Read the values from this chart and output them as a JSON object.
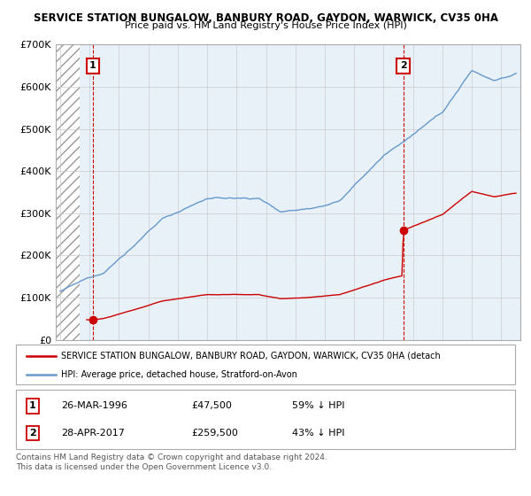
{
  "title1": "SERVICE STATION BUNGALOW, BANBURY ROAD, GAYDON, WARWICK, CV35 0HA",
  "title2": "Price paid vs. HM Land Registry's House Price Index (HPI)",
  "ylim": [
    0,
    700000
  ],
  "yticks": [
    0,
    100000,
    200000,
    300000,
    400000,
    500000,
    600000,
    700000
  ],
  "ytick_labels": [
    "£0",
    "£100K",
    "£200K",
    "£300K",
    "£400K",
    "£500K",
    "£600K",
    "£700K"
  ],
  "xlim_start": 1993.7,
  "xlim_end": 2025.3,
  "hatch_end": 1995.3,
  "sale1_x": 1996.23,
  "sale1_y": 47500,
  "sale2_x": 2017.33,
  "sale2_y": 259500,
  "legend1": "SERVICE STATION BUNGALOW, BANBURY ROAD, GAYDON, WARWICK, CV35 0HA (detach",
  "legend2": "HPI: Average price, detached house, Stratford-on-Avon",
  "footer": "Contains HM Land Registry data © Crown copyright and database right 2024.\nThis data is licensed under the Open Government Licence v3.0.",
  "line_color_red": "#cc0000",
  "line_color_blue": "#6699cc",
  "bg_color": "#ffffff",
  "plot_bg": "#e8f0f8"
}
